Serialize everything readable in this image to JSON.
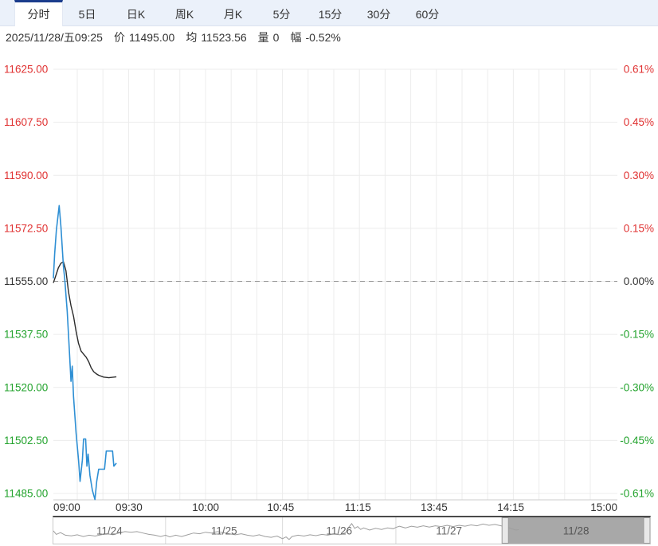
{
  "palette": {
    "up": "#e03232",
    "down": "#23a32d",
    "flat": "#333333",
    "price_line": "#2e8fd4",
    "avg_line": "#2b2b2b",
    "grid": "#ececec",
    "baseline_dash": "#999999",
    "axis_line": "#cccccc",
    "tab_active_border": "#1a3c8c",
    "nav_spark": "#9e9e9e",
    "nav_selection_fill": "#a8a8a8",
    "nav_divider": "#d9d9d9",
    "nav_date_text": "#666666",
    "nav_selected_text": "#555555"
  },
  "tabs": {
    "items": [
      {
        "label": "分时",
        "active": true
      },
      {
        "label": "5日",
        "active": false
      },
      {
        "label": "日K",
        "active": false
      },
      {
        "label": "周K",
        "active": false
      },
      {
        "label": "月K",
        "active": false
      },
      {
        "label": "5分",
        "active": false
      },
      {
        "label": "15分",
        "active": false
      },
      {
        "label": "30分",
        "active": false
      },
      {
        "label": "60分",
        "active": false
      }
    ]
  },
  "info": {
    "datetime": "2025/11/28/五09:25",
    "price_label": "价",
    "price": "11495.00",
    "avg_label": "均",
    "avg": "11523.56",
    "vol_label": "量",
    "vol": "0",
    "chg_label": "幅",
    "chg": "-0.52%"
  },
  "chart_data": {
    "type": "line",
    "title": "",
    "xlabel": "",
    "ylabel": "",
    "ylim": [
      11485,
      11625
    ],
    "baseline": 11555,
    "grid": true,
    "y_ticks_left": [
      {
        "label": "11625.00",
        "tone": "up"
      },
      {
        "label": "11607.50",
        "tone": "up"
      },
      {
        "label": "11590.00",
        "tone": "up"
      },
      {
        "label": "11572.50",
        "tone": "up"
      },
      {
        "label": "11555.00",
        "tone": "flat"
      },
      {
        "label": "11537.50",
        "tone": "down"
      },
      {
        "label": "11520.00",
        "tone": "down"
      },
      {
        "label": "11502.50",
        "tone": "down"
      },
      {
        "label": "11485.00",
        "tone": "down"
      }
    ],
    "y_ticks_right": [
      {
        "label": "0.61%",
        "tone": "up"
      },
      {
        "label": "0.45%",
        "tone": "up"
      },
      {
        "label": "0.30%",
        "tone": "up"
      },
      {
        "label": "0.15%",
        "tone": "up"
      },
      {
        "label": "0.00%",
        "tone": "flat"
      },
      {
        "label": "-0.15%",
        "tone": "down"
      },
      {
        "label": "-0.30%",
        "tone": "down"
      },
      {
        "label": "-0.45%",
        "tone": "down"
      },
      {
        "label": "-0.61%",
        "tone": "down"
      }
    ],
    "x_ticks": [
      {
        "label": "09:00",
        "pos": 0.0
      },
      {
        "label": "09:30",
        "pos": 0.134
      },
      {
        "label": "10:00",
        "pos": 0.27
      },
      {
        "label": "10:45",
        "pos": 0.403
      },
      {
        "label": "11:15",
        "pos": 0.54
      },
      {
        "label": "13:45",
        "pos": 0.675
      },
      {
        "label": "14:15",
        "pos": 0.811
      },
      {
        "label": "15:00",
        "pos": 1.0
      }
    ],
    "minutes_per_label_segment": 30,
    "series": [
      {
        "name": "price",
        "color_key": "price_line",
        "x_minutes": [
          0,
          0.5,
          1.2,
          2.3,
          3,
          4,
          4.5,
          5.5,
          6.3,
          7,
          7.5,
          8,
          9,
          10,
          10.6,
          11.5,
          12,
          12.8,
          13.3,
          13.8,
          14.5,
          15.5,
          16.5,
          17.2,
          18,
          20.3,
          21,
          23.5,
          24,
          25
        ],
        "values": [
          11556,
          11564,
          11572,
          11580,
          11573,
          11560,
          11556,
          11545,
          11533,
          11522,
          11527,
          11517,
          11505,
          11496,
          11489,
          11496,
          11503,
          11503,
          11494,
          11498,
          11491,
          11486,
          11483,
          11489,
          11493,
          11493,
          11499,
          11499,
          11494,
          11495
        ]
      },
      {
        "name": "average",
        "color_key": "avg_line",
        "x_minutes": [
          0,
          1,
          2,
          3,
          4,
          5,
          6,
          7,
          8,
          9,
          10,
          11,
          12,
          13,
          14,
          15,
          16,
          17,
          18,
          20,
          22,
          25
        ],
        "values": [
          11554.5,
          11557,
          11559.5,
          11561,
          11561.5,
          11558.5,
          11551.5,
          11547,
          11543.5,
          11538.5,
          11534.5,
          11532,
          11531,
          11530,
          11528.5,
          11526.5,
          11525.2,
          11524.5,
          11524,
          11523.4,
          11523.2,
          11523.5
        ]
      }
    ]
  },
  "navigator": {
    "days": [
      {
        "label": "11/24",
        "start": 0.0,
        "end": 0.188
      },
      {
        "label": "11/25",
        "start": 0.188,
        "end": 0.384
      },
      {
        "label": "11/26",
        "start": 0.384,
        "end": 0.574
      },
      {
        "label": "11/27",
        "start": 0.574,
        "end": 0.752
      },
      {
        "label": "11/28",
        "start": 0.752,
        "end": 1.0
      }
    ],
    "selected_day": "11/28",
    "selection": {
      "start": 0.752,
      "end": 1.0
    },
    "spark": [
      [
        0.0,
        0.52
      ],
      [
        0.005,
        0.68
      ],
      [
        0.012,
        0.6
      ],
      [
        0.02,
        0.72
      ],
      [
        0.03,
        0.75
      ],
      [
        0.04,
        0.7
      ],
      [
        0.05,
        0.78
      ],
      [
        0.06,
        0.72
      ],
      [
        0.07,
        0.76
      ],
      [
        0.08,
        0.7
      ],
      [
        0.09,
        0.65
      ],
      [
        0.1,
        0.7
      ],
      [
        0.11,
        0.62
      ],
      [
        0.12,
        0.55
      ],
      [
        0.13,
        0.58
      ],
      [
        0.14,
        0.55
      ],
      [
        0.15,
        0.62
      ],
      [
        0.16,
        0.68
      ],
      [
        0.17,
        0.72
      ],
      [
        0.18,
        0.78
      ],
      [
        0.188,
        0.72
      ],
      [
        0.195,
        0.8
      ],
      [
        0.205,
        0.72
      ],
      [
        0.215,
        0.78
      ],
      [
        0.225,
        0.7
      ],
      [
        0.235,
        0.62
      ],
      [
        0.245,
        0.65
      ],
      [
        0.255,
        0.58
      ],
      [
        0.265,
        0.62
      ],
      [
        0.275,
        0.55
      ],
      [
        0.285,
        0.6
      ],
      [
        0.295,
        0.66
      ],
      [
        0.305,
        0.7
      ],
      [
        0.315,
        0.65
      ],
      [
        0.325,
        0.72
      ],
      [
        0.335,
        0.76
      ],
      [
        0.345,
        0.7
      ],
      [
        0.355,
        0.78
      ],
      [
        0.365,
        0.82
      ],
      [
        0.375,
        0.76
      ],
      [
        0.384,
        0.88
      ],
      [
        0.39,
        0.8
      ],
      [
        0.395,
        0.92
      ],
      [
        0.4,
        0.78
      ],
      [
        0.41,
        0.72
      ],
      [
        0.42,
        0.76
      ],
      [
        0.43,
        0.7
      ],
      [
        0.44,
        0.74
      ],
      [
        0.45,
        0.68
      ],
      [
        0.46,
        0.72
      ],
      [
        0.47,
        0.66
      ],
      [
        0.48,
        0.7
      ],
      [
        0.49,
        0.6
      ],
      [
        0.495,
        0.35
      ],
      [
        0.5,
        0.18
      ],
      [
        0.505,
        0.4
      ],
      [
        0.51,
        0.32
      ],
      [
        0.515,
        0.45
      ],
      [
        0.52,
        0.38
      ],
      [
        0.53,
        0.48
      ],
      [
        0.54,
        0.4
      ],
      [
        0.55,
        0.45
      ],
      [
        0.56,
        0.38
      ],
      [
        0.57,
        0.42
      ],
      [
        0.574,
        0.36
      ],
      [
        0.58,
        0.3
      ],
      [
        0.59,
        0.38
      ],
      [
        0.6,
        0.3
      ],
      [
        0.61,
        0.35
      ],
      [
        0.62,
        0.28
      ],
      [
        0.63,
        0.34
      ],
      [
        0.64,
        0.28
      ],
      [
        0.65,
        0.32
      ],
      [
        0.66,
        0.26
      ],
      [
        0.67,
        0.32
      ],
      [
        0.68,
        0.26
      ],
      [
        0.69,
        0.3
      ],
      [
        0.7,
        0.24
      ],
      [
        0.71,
        0.28
      ],
      [
        0.72,
        0.2
      ],
      [
        0.73,
        0.26
      ],
      [
        0.74,
        0.22
      ],
      [
        0.753,
        0.3
      ],
      [
        0.76,
        0.34
      ],
      [
        0.768,
        0.42
      ],
      [
        0.775,
        0.48
      ],
      [
        0.78,
        0.46
      ]
    ]
  }
}
